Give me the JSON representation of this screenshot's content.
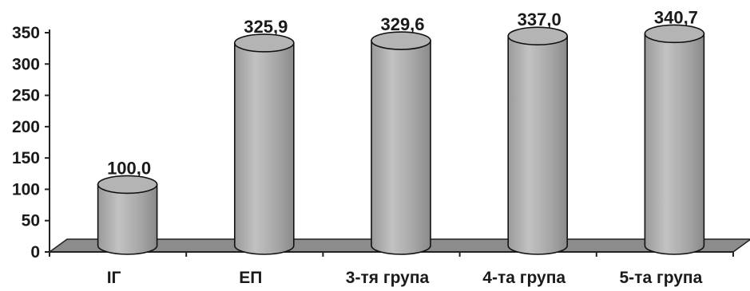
{
  "chart_data": {
    "type": "bar",
    "style": "3d-cylinder",
    "categories": [
      "ІГ",
      "ЕП",
      "3-тя група",
      "4-та група",
      "5-та група"
    ],
    "values": [
      100.0,
      325.9,
      329.6,
      337.0,
      340.7
    ],
    "data_labels": [
      "100,0",
      "325,9",
      "329,6",
      "337,0",
      "340,7"
    ],
    "yticks": [
      "0",
      "50",
      "100",
      "150",
      "200",
      "250",
      "300",
      "350"
    ],
    "ylim": [
      0,
      350
    ],
    "title": "",
    "xlabel": "",
    "ylabel": "",
    "grid": false,
    "legend": "none",
    "colors": {
      "bar": "#a9a9a9",
      "floor": "#8c8c8c",
      "axis": "#222222",
      "text": "#1a1a1a"
    }
  }
}
